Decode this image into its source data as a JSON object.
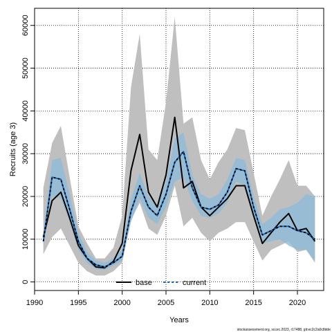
{
  "chart_data": {
    "type": "line",
    "xlabel": "Years",
    "ylabel": "Recruits (age 3)",
    "xlim": [
      1990,
      2023
    ],
    "ylim": [
      -2000,
      64000
    ],
    "xticks": [
      1990,
      1995,
      2000,
      2005,
      2010,
      2015,
      2020
    ],
    "yticks": [
      0,
      10000,
      20000,
      30000,
      40000,
      50000,
      60000
    ],
    "xtick_labels": [
      "1990",
      "1995",
      "2000",
      "2005",
      "2010",
      "2015",
      "2020"
    ],
    "ytick_labels": [
      "0",
      "10000",
      "20000",
      "30000",
      "40000",
      "50000",
      "60000"
    ],
    "grid": true,
    "legend_position": "bottom-center",
    "x": [
      1991,
      1992,
      1993,
      1994,
      1995,
      1996,
      1997,
      1998,
      1999,
      2000,
      2001,
      2002,
      2003,
      2004,
      2005,
      2006,
      2007,
      2008,
      2009,
      2010,
      2011,
      2012,
      2013,
      2014,
      2015,
      2016,
      2017,
      2018,
      2019,
      2020,
      2021,
      2022
    ],
    "series": [
      {
        "name": "base",
        "color": "#000000",
        "band_color": "#bfbfbf",
        "values": [
          10500,
          19000,
          21000,
          15000,
          8500,
          5500,
          3500,
          3300,
          4800,
          9000,
          26000,
          34500,
          21000,
          17500,
          25000,
          38500,
          22000,
          23500,
          17500,
          15500,
          17500,
          19500,
          22500,
          22500,
          15500,
          9000,
          11500,
          14000,
          16000,
          12000,
          12500,
          9500
        ],
        "lower": [
          6500,
          10500,
          12500,
          8500,
          4500,
          2500,
          1500,
          1500,
          2500,
          4500,
          14500,
          18500,
          12500,
          11000,
          15500,
          22500,
          13000,
          15000,
          11500,
          9500,
          11500,
          12500,
          14000,
          14000,
          9500,
          5000,
          7500,
          8500,
          9500,
          7000,
          7500,
          4500
        ],
        "upper": [
          22000,
          32500,
          36500,
          24500,
          13000,
          9000,
          5500,
          5500,
          8000,
          15500,
          45500,
          58000,
          31000,
          28500,
          42000,
          62000,
          37000,
          38500,
          28500,
          24000,
          28000,
          31000,
          36000,
          35500,
          25500,
          15500,
          20000,
          24000,
          28500,
          22500,
          22500,
          20000
        ]
      },
      {
        "name": "current",
        "color": "#1565c0",
        "band_color": "#8fbcd8",
        "values": [
          9500,
          24500,
          24000,
          17000,
          9500,
          5500,
          4000,
          3500,
          4500,
          6000,
          16500,
          22500,
          17500,
          15500,
          20500,
          28000,
          30500,
          22000,
          17500,
          17000,
          18000,
          21000,
          26500,
          26000,
          17500,
          11000,
          12000,
          13000,
          13000,
          12000,
          11500,
          10000
        ],
        "lower": [
          8500,
          20000,
          19500,
          14000,
          7500,
          4500,
          3000,
          2800,
          3800,
          5000,
          14000,
          19500,
          15000,
          13500,
          17500,
          23500,
          24500,
          19000,
          15500,
          15000,
          16000,
          18500,
          23500,
          22500,
          15000,
          9000,
          9500,
          10000,
          8500,
          7500,
          7500,
          5000
        ],
        "upper": [
          11000,
          28500,
          29000,
          20500,
          11500,
          7000,
          5000,
          4500,
          5500,
          7500,
          19500,
          25500,
          20000,
          18000,
          23500,
          33500,
          35000,
          25000,
          20500,
          19500,
          20500,
          24000,
          29000,
          28500,
          20000,
          13500,
          15000,
          17000,
          17500,
          18500,
          20500,
          20000
        ]
      }
    ]
  },
  "footnote": "stockassessment.org, sccec.2023, r17488, git:ec2c2a0c8dde"
}
